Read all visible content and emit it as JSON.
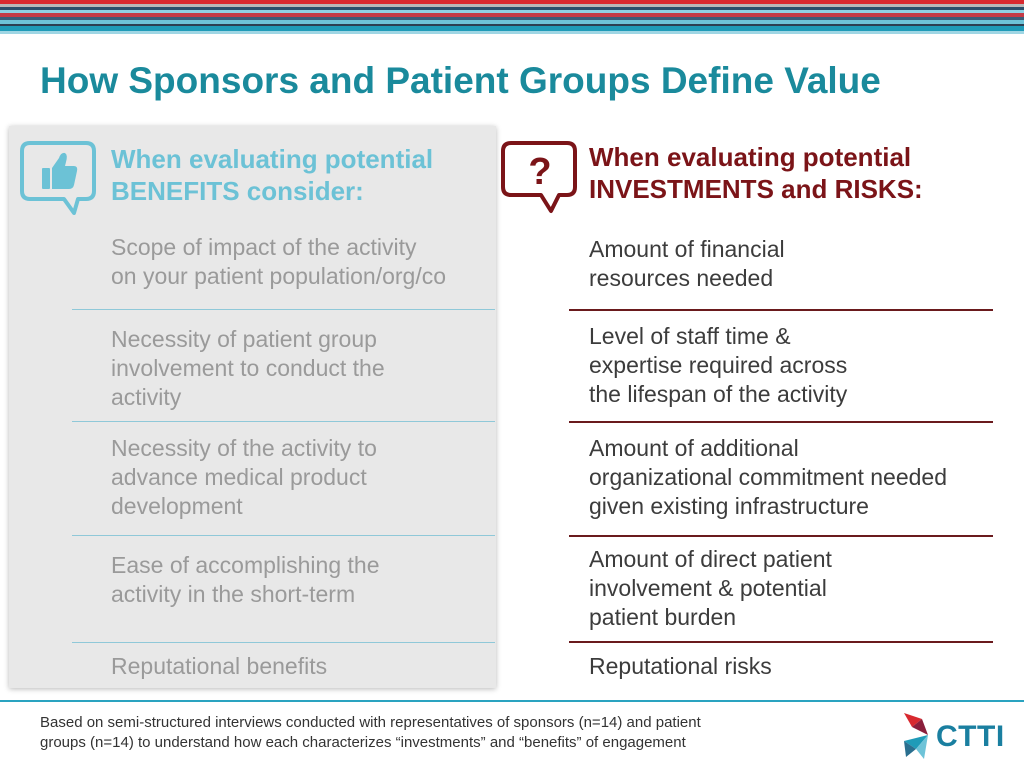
{
  "slide": {
    "title": "How Sponsors and Patient Groups Define Value"
  },
  "benefits": {
    "heading_lines": [
      "When evaluating potential",
      "BENEFITS consider:"
    ],
    "items": [
      {
        "lines": [
          "Scope of impact of the activity",
          "on your patient population/org/co"
        ]
      },
      {
        "lines": [
          "Necessity of patient group",
          "involvement to conduct the",
          "activity"
        ]
      },
      {
        "lines": [
          "Necessity of the activity to",
          "advance medical product",
          "development"
        ]
      },
      {
        "lines": [
          "Ease of accomplishing the",
          "activity in the short-term"
        ]
      },
      {
        "lines": [
          "Reputational benefits"
        ]
      }
    ]
  },
  "investments": {
    "icon_glyph": "?",
    "heading_lines": [
      "When evaluating potential",
      "INVESTMENTS and RISKS:"
    ],
    "items": [
      {
        "lines": [
          "Amount of financial",
          "resources needed"
        ]
      },
      {
        "lines": [
          "Level of staff time &",
          "expertise required across",
          "the lifespan of the activity"
        ]
      },
      {
        "lines": [
          "Amount of additional",
          "organizational commitment needed",
          "given existing infrastructure"
        ]
      },
      {
        "lines": [
          "Amount of direct patient",
          "involvement & potential",
          "patient burden"
        ]
      },
      {
        "lines": [
          "Reputational risks"
        ]
      }
    ]
  },
  "footer": {
    "note_lines": [
      "Based on semi-structured interviews conducted with representatives of sponsors (n=14) and patient",
      "groups (n=14) to understand how each characterizes “investments” and “benefits” of engagement"
    ],
    "logo_text": "CTTI"
  },
  "icons": {
    "benefits": "thumbs-up-speech-bubble-icon",
    "investments": "question-mark-speech-bubble-icon",
    "logo": "ctti-logo-icon"
  },
  "colors": {
    "title": "#1a8a9c",
    "benefits_accent": "#6cc2d6",
    "investments_accent": "#7b1418",
    "benefit_text": "#9a9a9a",
    "investment_text": "#3c3c3c",
    "footer_rule": "#2aa3c0"
  }
}
